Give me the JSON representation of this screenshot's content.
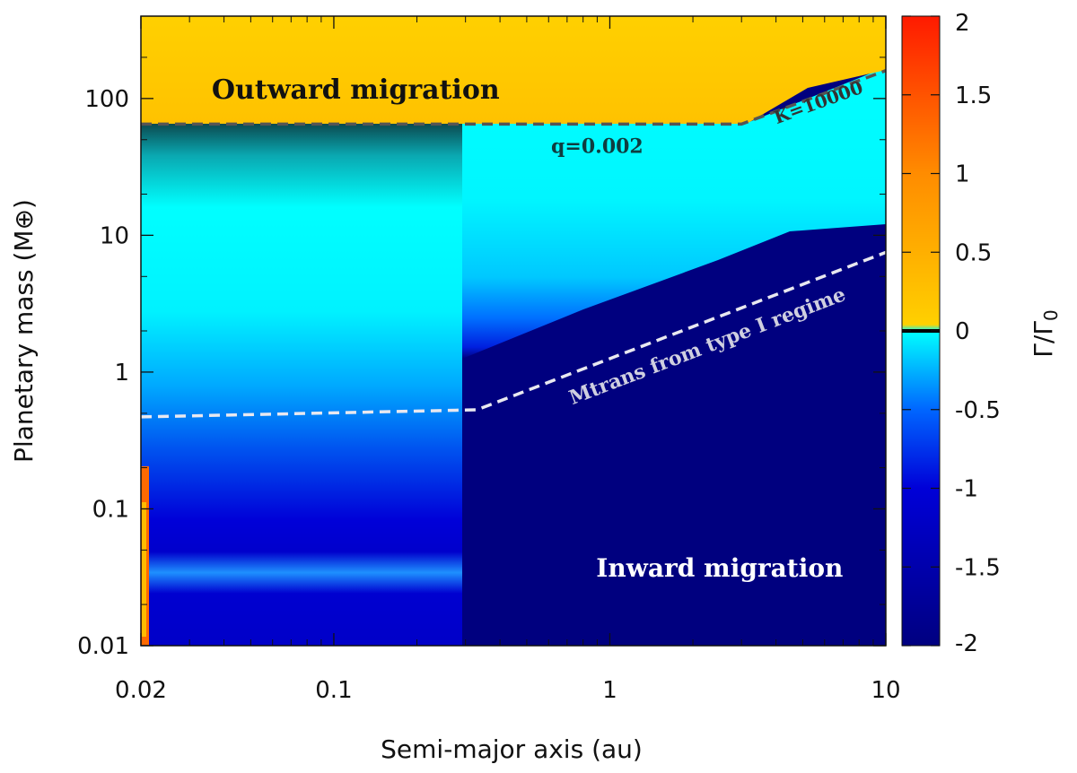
{
  "chart_data": {
    "type": "heatmap",
    "xlabel": "Semi-major axis (au)",
    "ylabel": "Planetary mass (M⊕)",
    "colorbar_label": "Γ/Γ",
    "colorbar_label_sub": "0",
    "x_scale": "log",
    "y_scale": "log",
    "xlim": [
      0.02,
      10
    ],
    "ylim": [
      0.01,
      400
    ],
    "x_ticks": [
      {
        "value": 0.02,
        "label": "0.02"
      },
      {
        "value": 0.1,
        "label": "0.1"
      },
      {
        "value": 1,
        "label": "1"
      },
      {
        "value": 10,
        "label": "10"
      }
    ],
    "y_ticks": [
      {
        "value": 0.01,
        "label": "0.01"
      },
      {
        "value": 0.1,
        "label": "0.1"
      },
      {
        "value": 1,
        "label": "1"
      },
      {
        "value": 10,
        "label": "10"
      },
      {
        "value": 100,
        "label": "100"
      }
    ],
    "colorbar": {
      "range": [
        -2,
        2
      ],
      "ticks": [
        {
          "value": 2,
          "label": "2"
        },
        {
          "value": 1.5,
          "label": "1.5"
        },
        {
          "value": 1,
          "label": "1"
        },
        {
          "value": 0.5,
          "label": "0.5"
        },
        {
          "value": 0,
          "label": "0"
        },
        {
          "value": -0.5,
          "label": "-0.5"
        },
        {
          "value": -1,
          "label": "-1"
        },
        {
          "value": -1.5,
          "label": "-1.5"
        },
        {
          "value": -2,
          "label": "-2"
        }
      ],
      "stops": [
        {
          "value": 2,
          "color": "#ff1a00"
        },
        {
          "value": 1,
          "color": "#ff8c00"
        },
        {
          "value": 0.02,
          "color": "#ffd000"
        },
        {
          "value": 0,
          "color": "#00ffff"
        },
        {
          "value": -0.5,
          "color": "#0066ff"
        },
        {
          "value": -1,
          "color": "#0000d8"
        },
        {
          "value": -2,
          "color": "#000080"
        }
      ]
    },
    "curves": [
      {
        "name": "q=0.002",
        "style": "dashed",
        "color": "#555555",
        "points": [
          [
            0.02,
            65
          ],
          [
            3.0,
            65
          ],
          [
            10,
            160
          ]
        ]
      },
      {
        "name": "Mtrans from type I regime",
        "style": "dashed",
        "color": "#e8e8f0",
        "points": [
          [
            0.02,
            0.47
          ],
          [
            0.33,
            0.53
          ],
          [
            10,
            7.5
          ]
        ]
      }
    ],
    "annotations": [
      {
        "text": "Outward migration",
        "x": 0.12,
        "y": 100,
        "color": "#111111"
      },
      {
        "text": "q=0.002",
        "x": 0.9,
        "y": 40,
        "color": "#0f3d40"
      },
      {
        "text": "K=10000",
        "x": 5.8,
        "y": 85,
        "color": "#333333"
      },
      {
        "text": "Mtrans from type I regime",
        "x": 2.3,
        "y": 1.4,
        "color": "#cfcfe0"
      },
      {
        "text": "Inward migration",
        "x": 2.5,
        "y": 0.032,
        "color": "#ffffff"
      }
    ]
  }
}
